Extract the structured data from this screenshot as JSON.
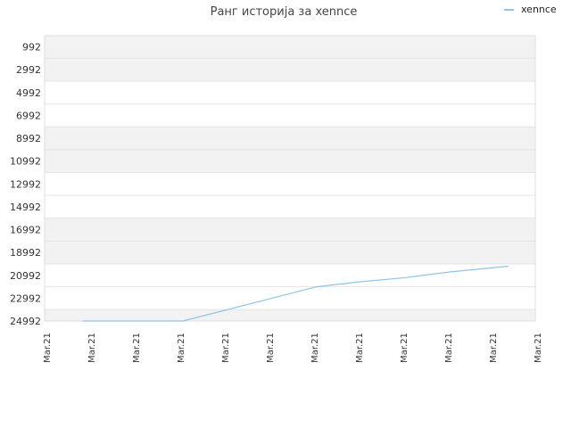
{
  "chart_data": {
    "type": "line",
    "title": "Ранг историја за xennce",
    "xlabel": "",
    "ylabel": "",
    "y_reversed": true,
    "ylim": [
      992,
      24992
    ],
    "y_ticks": [
      992,
      2992,
      4992,
      6992,
      8992,
      10992,
      12992,
      14992,
      16992,
      18992,
      20992,
      22992,
      24992
    ],
    "x_tick_labels": [
      "Mar.21",
      "Mar.21",
      "Mar.21",
      "Mar.21",
      "Mar.21",
      "Mar.21",
      "Mar.21",
      "Mar.21",
      "Mar.21",
      "Mar.21",
      "Mar.21",
      "Mar.21"
    ],
    "grid": "horizontal alternating bands",
    "legend_position": "top-right",
    "series": [
      {
        "name": "xennce",
        "color": "#8ec4e8",
        "x": [
          0.85,
          3.1,
          6.1,
          7.0,
          8.1,
          9.1,
          10.4
        ],
        "values": [
          24992,
          24992,
          21992,
          21592,
          21192,
          20692,
          20192
        ]
      }
    ]
  }
}
